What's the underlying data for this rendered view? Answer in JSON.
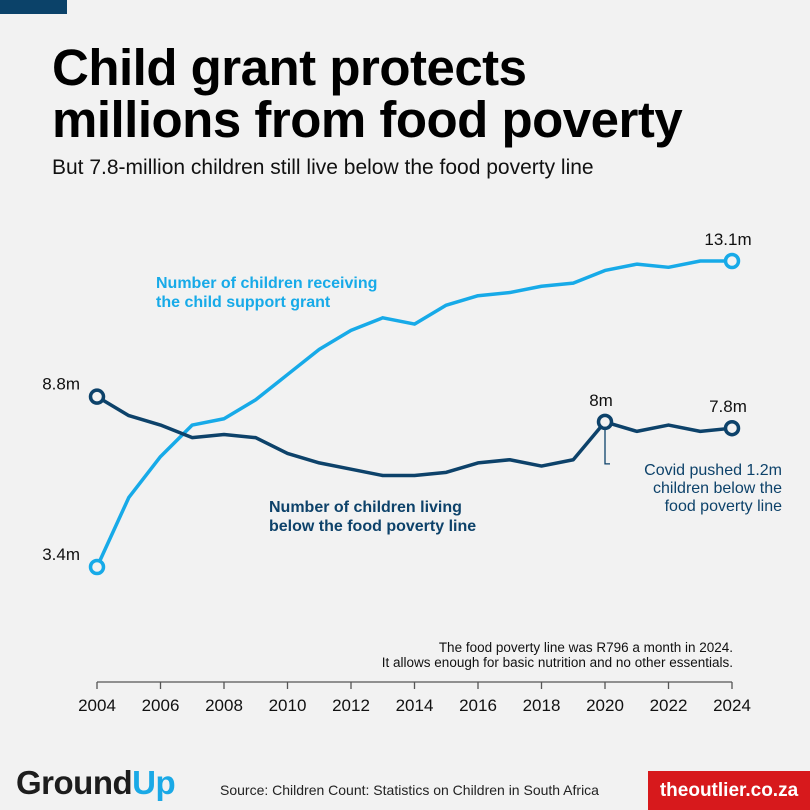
{
  "header": {
    "title_line1": "Child grant protects",
    "title_line2": "millions from food poverty",
    "subtitle": "But 7.8-million children still live below the food poverty line"
  },
  "chart_data": {
    "type": "line",
    "title": "Child grant protects millions from food poverty",
    "subtitle": "But 7.8-million children still live below the food poverty line",
    "xlabel": "",
    "ylabel": "",
    "x": [
      2004,
      2005,
      2006,
      2007,
      2008,
      2009,
      2010,
      2011,
      2012,
      2013,
      2014,
      2015,
      2016,
      2017,
      2018,
      2019,
      2020,
      2021,
      2022,
      2023,
      2024
    ],
    "xticks": [
      "2004",
      "2006",
      "2008",
      "2010",
      "2012",
      "2014",
      "2016",
      "2018",
      "2020",
      "2022",
      "2024"
    ],
    "ylim": [
      3.4,
      13.1
    ],
    "grid": false,
    "series": [
      {
        "name": "Number of children receiving the child support grant",
        "label_line1": "Number of children receiving",
        "label_line2": "the child support grant",
        "color": "#17aae8",
        "unit": "million",
        "values": [
          3.4,
          5.6,
          6.9,
          7.9,
          8.1,
          8.7,
          9.5,
          10.3,
          10.9,
          11.3,
          11.1,
          11.7,
          12.0,
          12.1,
          12.3,
          12.4,
          12.8,
          13.0,
          12.9,
          13.1,
          13.1
        ],
        "point_labels": [
          {
            "x": 2004,
            "text": "3.4m"
          },
          {
            "x": 2024,
            "text": "13.1m"
          }
        ]
      },
      {
        "name": "Number of children living below the food poverty line",
        "label_line1": "Number of children living",
        "label_line2": "below the food poverty line",
        "color": "#0d426a",
        "unit": "million",
        "values": [
          8.8,
          8.2,
          7.9,
          7.5,
          7.6,
          7.5,
          7.0,
          6.7,
          6.5,
          6.3,
          6.3,
          6.4,
          6.7,
          6.8,
          6.6,
          6.8,
          8.0,
          7.7,
          7.9,
          7.7,
          7.8
        ],
        "point_labels": [
          {
            "x": 2004,
            "text": "8.8m"
          },
          {
            "x": 2020,
            "text": "8m"
          },
          {
            "x": 2024,
            "text": "7.8m"
          }
        ]
      }
    ],
    "annotations": {
      "covid": [
        "Covid pushed 1.2m",
        "children below the",
        "food poverty line"
      ],
      "note": [
        "The food poverty line was R796 a month in 2024.",
        "It allows enough for basic nutrition and no other essentials."
      ]
    }
  },
  "footer": {
    "logo_part1": "Ground",
    "logo_part2": "Up",
    "source": "Source: Children Count: Statistics on Children in South Africa",
    "outlier": "theoutlier.co.za"
  }
}
